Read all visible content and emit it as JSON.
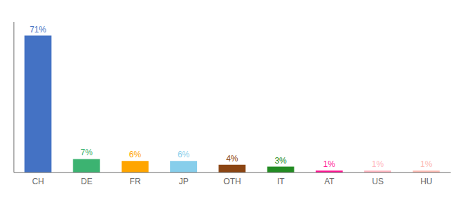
{
  "chart_data": {
    "type": "bar",
    "categories": [
      "CH",
      "DE",
      "FR",
      "JP",
      "OTH",
      "IT",
      "AT",
      "US",
      "HU"
    ],
    "values": [
      71,
      7,
      6,
      6,
      4,
      3,
      1,
      1,
      1
    ],
    "value_labels": [
      "71%",
      "7%",
      "6%",
      "6%",
      "4%",
      "3%",
      "1%",
      "1%",
      "1%"
    ],
    "colors": [
      "#4472C4",
      "#3CB371",
      "#FFA500",
      "#87CEEB",
      "#8B4513",
      "#228B22",
      "#FF1493",
      "#FFB6C1",
      "#FDBCB4"
    ],
    "ylim": [
      0,
      78
    ],
    "grid": false,
    "data_labels": true,
    "tick_labels": "x"
  }
}
